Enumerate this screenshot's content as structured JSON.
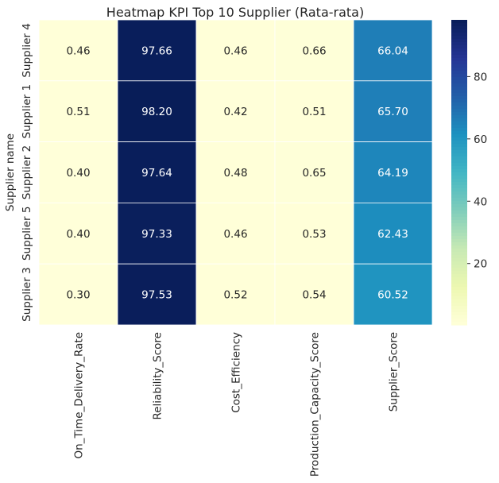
{
  "chart_data": {
    "type": "heatmap",
    "title": "Heatmap KPI Top 10 Supplier (Rata-rata)",
    "ylabel": "Supplier name",
    "xlabel": "",
    "columns": [
      "On_Time_Delivery_Rate",
      "Reliability_Score",
      "Cost_Efficiency",
      "Production_Capacity_Score",
      "Supplier_Score"
    ],
    "rows": [
      "Supplier 4",
      "Supplier 1",
      "Supplier 2",
      "Supplier 5",
      "Supplier 3"
    ],
    "values": [
      [
        0.46,
        97.66,
        0.46,
        0.66,
        66.04
      ],
      [
        0.51,
        98.2,
        0.42,
        0.51,
        65.7
      ],
      [
        0.4,
        97.64,
        0.48,
        0.65,
        64.19
      ],
      [
        0.4,
        97.33,
        0.46,
        0.53,
        62.43
      ],
      [
        0.3,
        97.53,
        0.52,
        0.54,
        60.52
      ]
    ],
    "value_format": "2 decimals",
    "colormap": "YlGnBu",
    "color_range": [
      0.3,
      98.2
    ],
    "colorbar_ticks": [
      20,
      40,
      60,
      80
    ],
    "annotate": true,
    "grid_lines_color": "#ffffff"
  }
}
